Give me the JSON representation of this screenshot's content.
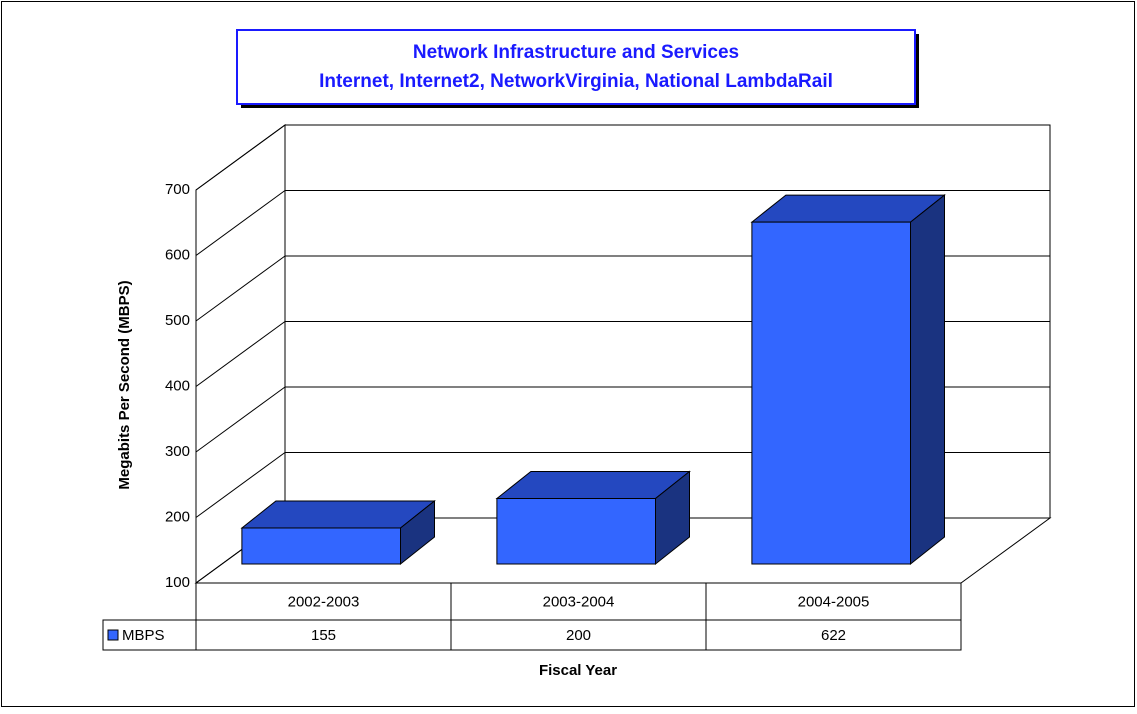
{
  "chart_data": {
    "type": "bar3d",
    "title": [
      "Network Infrastructure and Services",
      "Internet, Internet2, NetworkVirginia, National LambdaRail"
    ],
    "y_label": "Megabits Per Second (MBPS)",
    "x_label": "Fiscal Year",
    "categories": [
      "2002-2003",
      "2003-2004",
      "2004-2005"
    ],
    "series": [
      {
        "name": "MBPS",
        "color": "#3366ff",
        "values": [
          155,
          200,
          622
        ]
      }
    ],
    "ylim": [
      100,
      700
    ],
    "yticks": [
      100,
      200,
      300,
      400,
      500,
      600,
      700
    ],
    "grid": true,
    "data_table": true
  }
}
